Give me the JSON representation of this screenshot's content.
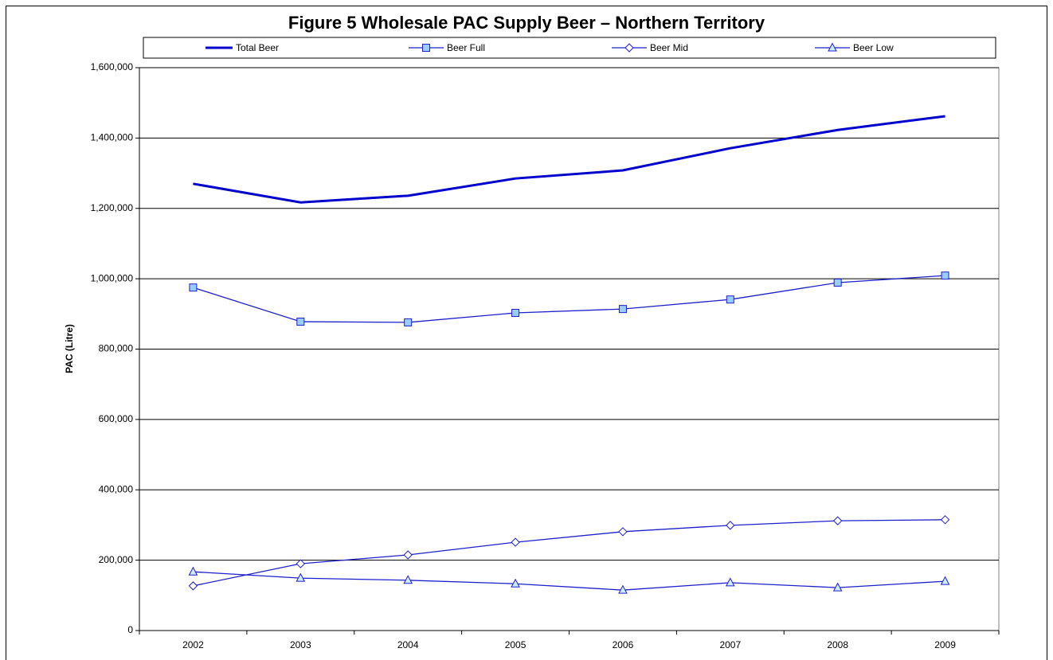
{
  "chart_data": {
    "type": "line",
    "title": "Figure 5 Wholesale PAC Supply Beer – Northern Territory",
    "ylabel": "PAC (Litre)",
    "categories": [
      "2002",
      "2003",
      "2004",
      "2005",
      "2006",
      "2007",
      "2008",
      "2009"
    ],
    "series": [
      {
        "name": "Total Beer",
        "color": "#0000cc",
        "line_width": 3,
        "marker": "none",
        "marker_fill": "none",
        "values": [
          1270000,
          1217000,
          1236000,
          1285000,
          1308000,
          1371000,
          1423000,
          1462000
        ]
      },
      {
        "name": "Beer Full",
        "color": "#1f1fcc",
        "line_width": 1.3,
        "marker": "square",
        "marker_fill": "#99ccff",
        "values": [
          975000,
          878000,
          876000,
          903000,
          914000,
          941000,
          989000,
          1009000
        ]
      },
      {
        "name": "Beer Mid",
        "color": "#1f1fcc",
        "line_width": 1.3,
        "marker": "diamond",
        "marker_fill": "#ffffff",
        "values": [
          127000,
          190000,
          215000,
          251000,
          281000,
          299000,
          312000,
          315000
        ]
      },
      {
        "name": "Beer Low",
        "color": "#1f1fcc",
        "line_width": 1.3,
        "marker": "triangle",
        "marker_fill": "#ccecff",
        "values": [
          167000,
          149000,
          143000,
          133000,
          115000,
          136000,
          122000,
          140000
        ]
      }
    ],
    "ylim": [
      0,
      1600000
    ],
    "yticks": [
      0,
      {
        "value": 200000,
        "label": "200,000"
      },
      {
        "value": 400000,
        "label": "400,000"
      },
      {
        "value": 600000,
        "label": "600,000"
      },
      {
        "value": 800000,
        "label": "800,000"
      },
      {
        "value": 1000000,
        "label": "1,000,000"
      },
      {
        "value": 1200000,
        "label": "1,200,000"
      },
      {
        "value": 1400000,
        "label": "1,400,000"
      },
      {
        "value": 1600000,
        "label": "1,600,000"
      }
    ],
    "grid": true,
    "legend": "top"
  }
}
